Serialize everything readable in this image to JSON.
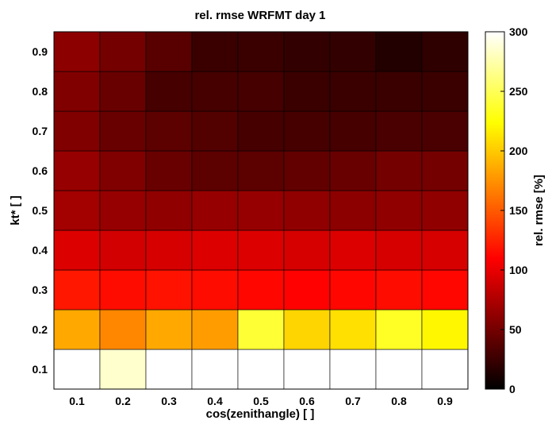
{
  "chart_data": {
    "type": "heatmap",
    "title": "rel. rmse  WRFMT  day 1",
    "xlabel": "cos(zenithangle) [ ]",
    "ylabel": "kt* [ ]",
    "x": [
      0.1,
      0.2,
      0.3,
      0.4,
      0.5,
      0.6,
      0.7,
      0.8,
      0.9
    ],
    "y": [
      0.1,
      0.2,
      0.3,
      0.4,
      0.5,
      0.6,
      0.7,
      0.8,
      0.9
    ],
    "x_tick_labels": [
      "0.1",
      "0.2",
      "0.3",
      "0.4",
      "0.5",
      "0.6",
      "0.7",
      "0.8",
      "0.9"
    ],
    "y_tick_labels": [
      "0.1",
      "0.2",
      "0.3",
      "0.4",
      "0.5",
      "0.6",
      "0.7",
      "0.8",
      "0.9"
    ],
    "values": [
      [
        300,
        285,
        300,
        300,
        300,
        300,
        300,
        300,
        300
      ],
      [
        185,
        170,
        185,
        180,
        240,
        205,
        210,
        235,
        220
      ],
      [
        120,
        115,
        118,
        115,
        112,
        110,
        112,
        115,
        112
      ],
      [
        95,
        90,
        92,
        95,
        95,
        92,
        95,
        92,
        92
      ],
      [
        70,
        65,
        62,
        65,
        65,
        62,
        60,
        62,
        62
      ],
      [
        65,
        55,
        45,
        40,
        40,
        42,
        45,
        50,
        50
      ],
      [
        55,
        45,
        40,
        35,
        30,
        30,
        30,
        32,
        32
      ],
      [
        55,
        45,
        30,
        30,
        30,
        25,
        25,
        25,
        25
      ],
      [
        60,
        50,
        38,
        25,
        25,
        22,
        22,
        15,
        20
      ]
    ],
    "colorbar": {
      "label": "rel. rmse [%]",
      "range": [
        0,
        300
      ],
      "ticks": [
        0,
        50,
        100,
        150,
        200,
        250,
        300
      ],
      "tick_labels": [
        "0",
        "50",
        "100",
        "150",
        "200",
        "250",
        "300"
      ],
      "colormap": "hot"
    }
  }
}
